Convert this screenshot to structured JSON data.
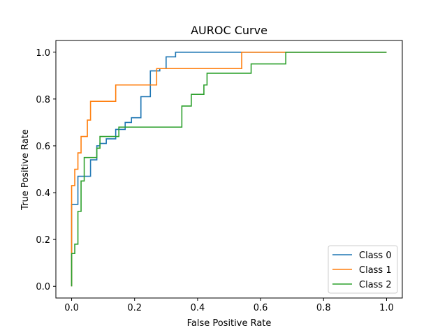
{
  "chart_data": {
    "type": "line",
    "title": "AUROC Curve",
    "xlabel": "False Positive Rate",
    "ylabel": "True Positive Rate",
    "xlim": [
      -0.05,
      1.05
    ],
    "ylim": [
      -0.05,
      1.05
    ],
    "xticks": [
      0.0,
      0.2,
      0.4,
      0.6,
      0.8,
      1.0
    ],
    "xtick_labels": [
      "0.0",
      "0.2",
      "0.4",
      "0.6",
      "0.8",
      "1.0"
    ],
    "yticks": [
      0.0,
      0.2,
      0.4,
      0.6,
      0.8,
      1.0
    ],
    "ytick_labels": [
      "0.0",
      "0.2",
      "0.4",
      "0.6",
      "0.8",
      "1.0"
    ],
    "grid": false,
    "legend_position": "lower-right",
    "series": [
      {
        "name": "Class 0",
        "color": "#1f77b4",
        "x": [
          0.0,
          0.0,
          0.02,
          0.02,
          0.03,
          0.03,
          0.06,
          0.06,
          0.08,
          0.08,
          0.09,
          0.09,
          0.11,
          0.11,
          0.14,
          0.14,
          0.17,
          0.17,
          0.19,
          0.19,
          0.22,
          0.22,
          0.25,
          0.25,
          0.28,
          0.28,
          0.3,
          0.3,
          0.33,
          0.33,
          0.5,
          0.7,
          1.0
        ],
        "y": [
          0.0,
          0.35,
          0.35,
          0.47,
          0.47,
          0.47,
          0.47,
          0.54,
          0.54,
          0.6,
          0.6,
          0.61,
          0.61,
          0.63,
          0.63,
          0.67,
          0.67,
          0.7,
          0.7,
          0.72,
          0.72,
          0.81,
          0.81,
          0.92,
          0.92,
          0.93,
          0.93,
          0.98,
          0.98,
          1.0,
          1.0,
          1.0,
          1.0
        ]
      },
      {
        "name": "Class 1",
        "color": "#ff7f0e",
        "x": [
          0.0,
          0.0,
          0.01,
          0.01,
          0.02,
          0.02,
          0.03,
          0.03,
          0.05,
          0.05,
          0.06,
          0.06,
          0.14,
          0.14,
          0.27,
          0.27,
          0.54,
          0.54,
          0.68,
          1.0
        ],
        "y": [
          0.0,
          0.43,
          0.43,
          0.5,
          0.5,
          0.57,
          0.57,
          0.64,
          0.64,
          0.71,
          0.71,
          0.79,
          0.79,
          0.86,
          0.86,
          0.93,
          0.93,
          1.0,
          1.0,
          1.0
        ]
      },
      {
        "name": "Class 2",
        "color": "#2ca02c",
        "x": [
          0.0,
          0.0,
          0.01,
          0.01,
          0.02,
          0.02,
          0.03,
          0.03,
          0.04,
          0.04,
          0.08,
          0.08,
          0.09,
          0.09,
          0.14,
          0.14,
          0.15,
          0.15,
          0.35,
          0.35,
          0.38,
          0.38,
          0.42,
          0.42,
          0.43,
          0.43,
          0.57,
          0.57,
          0.68,
          0.68,
          1.0
        ],
        "y": [
          0.0,
          0.14,
          0.14,
          0.18,
          0.18,
          0.32,
          0.32,
          0.45,
          0.45,
          0.55,
          0.55,
          0.59,
          0.59,
          0.64,
          0.64,
          0.64,
          0.64,
          0.68,
          0.68,
          0.77,
          0.77,
          0.82,
          0.82,
          0.86,
          0.86,
          0.91,
          0.91,
          0.95,
          0.95,
          1.0,
          1.0
        ]
      }
    ]
  }
}
